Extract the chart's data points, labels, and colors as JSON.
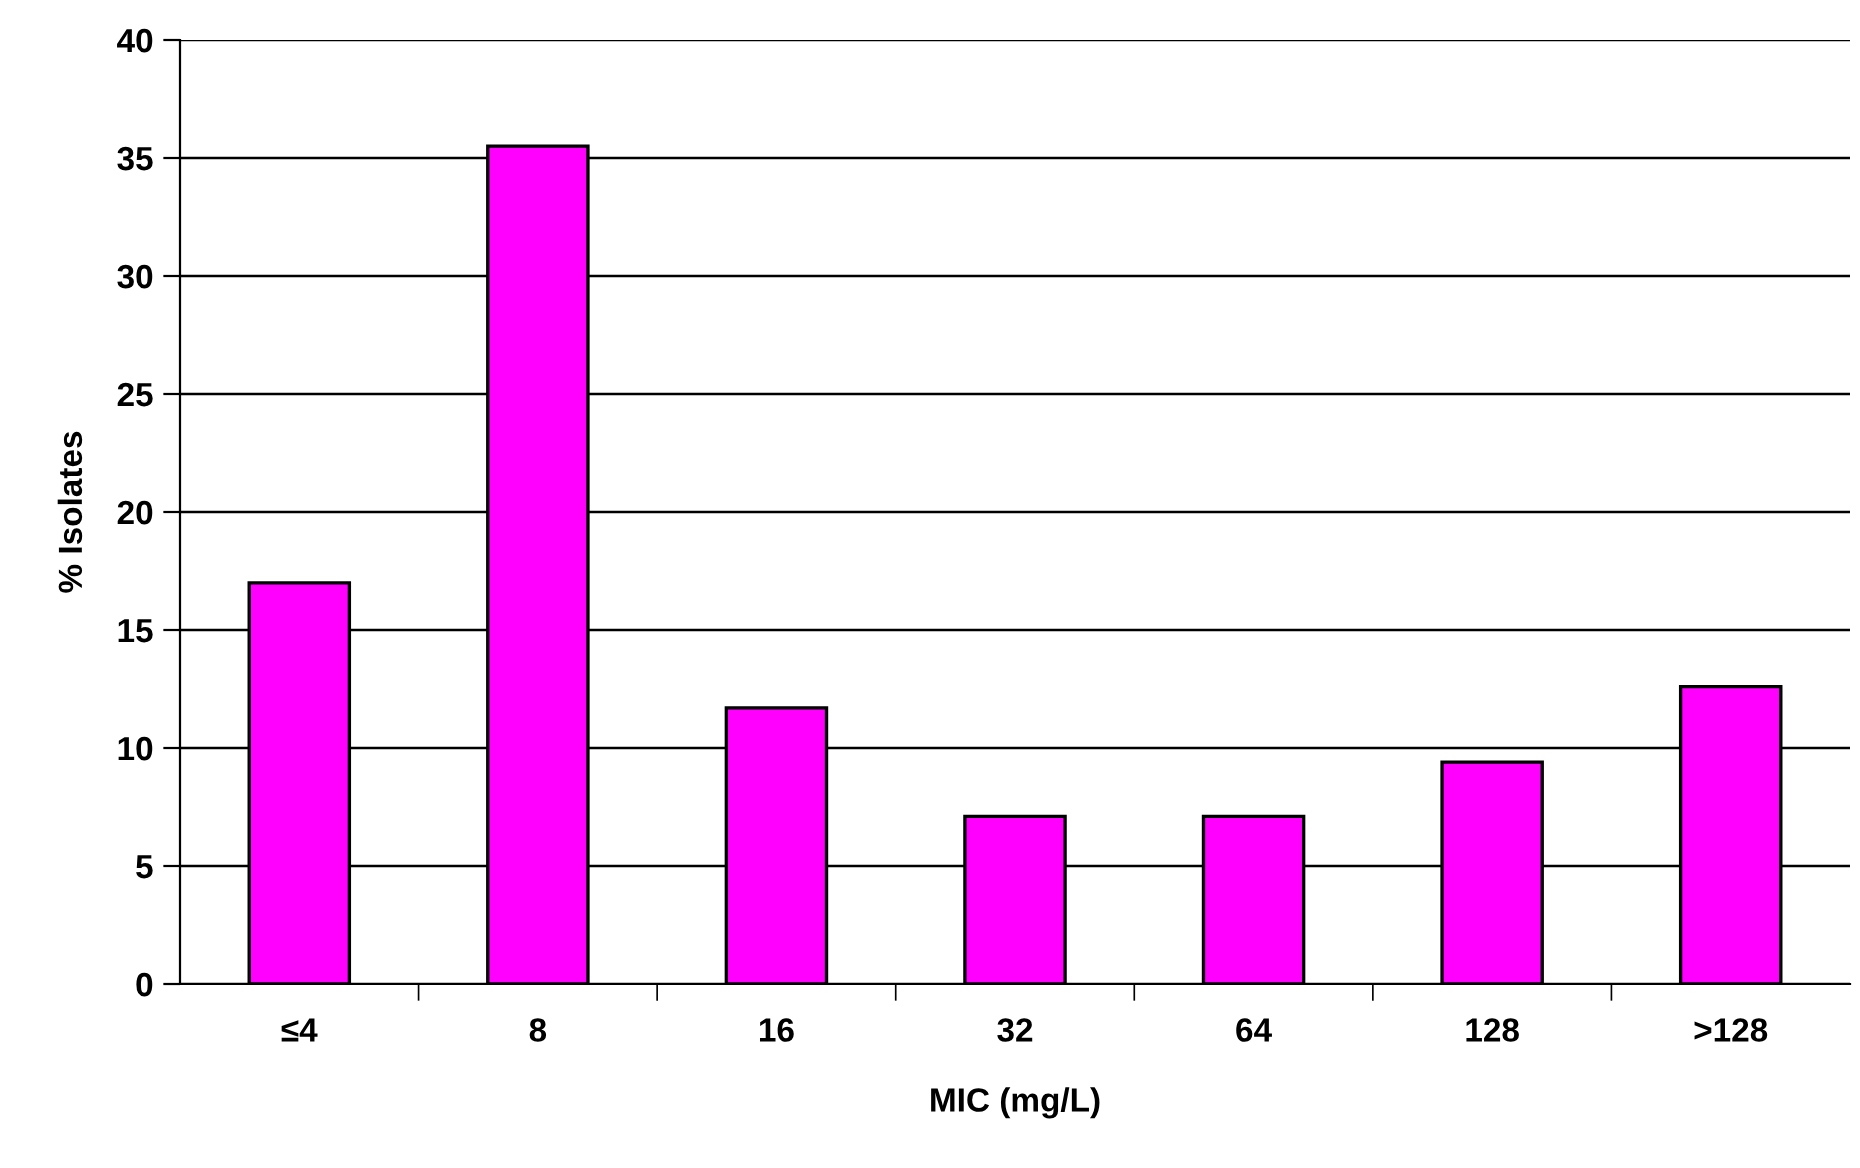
{
  "chart_data": {
    "type": "bar",
    "xlabel": "MIC (mg/L)",
    "ylabel": "% Isolates",
    "categories": [
      "≤4",
      "8",
      "16",
      "32",
      "64",
      "128",
      ">128"
    ],
    "values": [
      17.0,
      35.5,
      11.7,
      7.1,
      7.1,
      9.4,
      12.6
    ],
    "color": "#ff00ff",
    "ylim": [
      0,
      40
    ],
    "yticks": [
      0,
      5,
      10,
      15,
      20,
      25,
      30,
      35,
      40
    ],
    "grid": "y"
  }
}
